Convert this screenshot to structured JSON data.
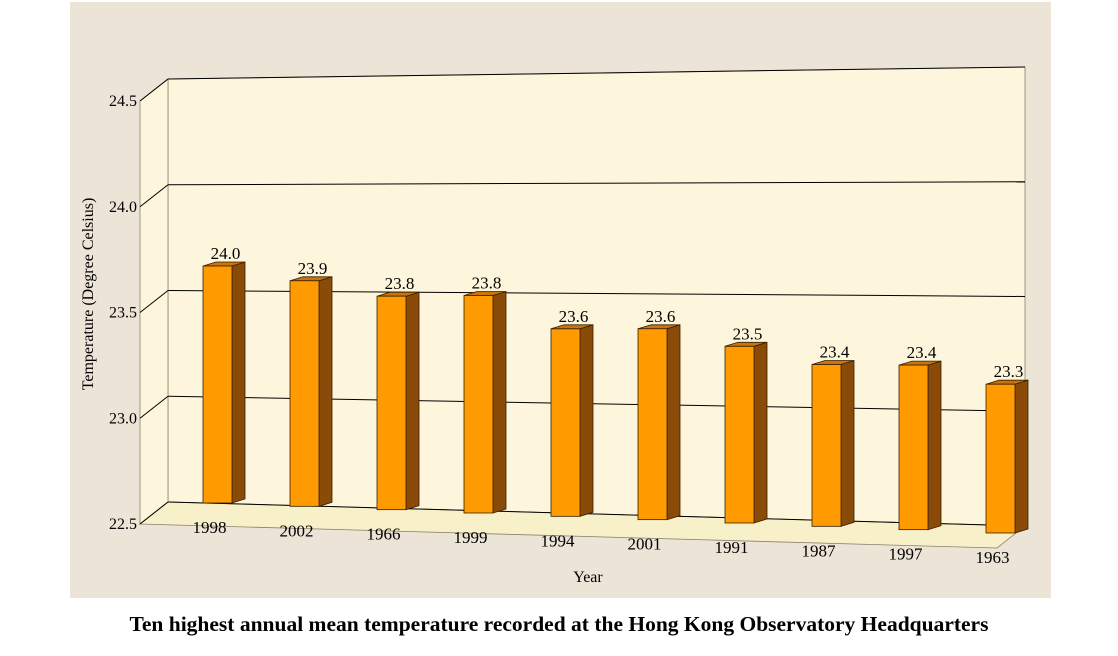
{
  "chart_data": {
    "type": "bar",
    "categories": [
      "1998",
      "2002",
      "1966",
      "1999",
      "1994",
      "2001",
      "1991",
      "1987",
      "1997",
      "1963"
    ],
    "values": [
      24.0,
      23.9,
      23.8,
      23.8,
      23.6,
      23.6,
      23.5,
      23.4,
      23.4,
      23.3
    ],
    "value_labels": [
      "24.0",
      "23.9",
      "23.8",
      "23.8",
      "23.6",
      "23.6",
      "23.5",
      "23.4",
      "23.4",
      "23.3"
    ],
    "xlabel": "Year",
    "ylabel": "Temperature (Degree Celsius)",
    "ylim": [
      22.5,
      24.5
    ],
    "yticks": [
      "22.5",
      "23.0",
      "23.5",
      "24.0",
      "24.5"
    ],
    "grid": true,
    "three_d": true
  },
  "caption": "Ten highest annual mean temperature recorded at the Hong Kong Observatory Headquarters",
  "colors": {
    "panel_background": "#ece4d6",
    "plot_background": "#fdf6dc",
    "floor": "#f8f0c8",
    "bar_front": "#ff9a00",
    "bar_side": "#8a4a08",
    "bar_top": "#c87410",
    "grid": "#000000"
  }
}
